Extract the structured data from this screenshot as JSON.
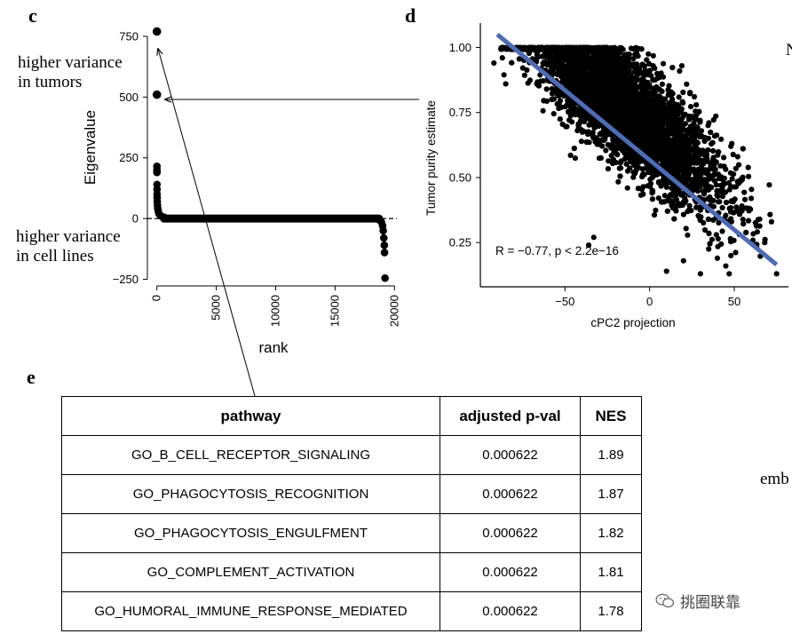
{
  "panels": {
    "c": "c",
    "d": "d",
    "e": "e"
  },
  "notes": {
    "tumors_line1": "higher variance",
    "tumors_line2": "in tumors",
    "lines_line1": "higher variance",
    "lines_line2": "in cell lines"
  },
  "edge_text": {
    "top": "N",
    "mid": "emb"
  },
  "watermark": "挑圈联靠",
  "chart_data": [
    {
      "type": "scatter",
      "panel": "c",
      "xlabel": "rank",
      "ylabel": "Eigenvalue",
      "xlim": [
        -800,
        20200
      ],
      "ylim": [
        -270,
        790
      ],
      "xticks": [
        0,
        5000,
        10000,
        15000,
        20000
      ],
      "xtick_labels": [
        "0",
        "5000",
        "10000",
        "15000",
        "20000"
      ],
      "yticks": [
        -250,
        0,
        250,
        500,
        750
      ],
      "ytick_labels": [
        "−250",
        "0",
        "250",
        "500",
        "750"
      ],
      "highlight_points": [
        {
          "x": 1,
          "y": 770
        },
        {
          "x": 2,
          "y": 510
        }
      ],
      "points": [
        {
          "x": 3,
          "y": 215
        },
        {
          "x": 4,
          "y": 200
        },
        {
          "x": 5,
          "y": 190
        },
        {
          "x": 8,
          "y": 140
        },
        {
          "x": 10,
          "y": 120
        },
        {
          "x": 14,
          "y": 100
        },
        {
          "x": 20,
          "y": 85
        },
        {
          "x": 30,
          "y": 70
        },
        {
          "x": 45,
          "y": 55
        },
        {
          "x": 70,
          "y": 42
        },
        {
          "x": 110,
          "y": 30
        },
        {
          "x": 180,
          "y": 20
        },
        {
          "x": 300,
          "y": 12
        },
        {
          "x": 600,
          "y": 6
        },
        {
          "x": 18700,
          "y": -5
        },
        {
          "x": 18900,
          "y": -15
        },
        {
          "x": 19000,
          "y": -30
        },
        {
          "x": 19050,
          "y": -50
        },
        {
          "x": 19100,
          "y": -80
        },
        {
          "x": 19140,
          "y": -110
        },
        {
          "x": 19160,
          "y": -140
        },
        {
          "x": 19200,
          "y": -245
        }
      ],
      "flat_segment": {
        "x_start": 600,
        "x_end": 18700,
        "y": 0
      }
    },
    {
      "type": "scatter",
      "panel": "d",
      "xlabel": "cPC2 projection",
      "ylabel": "Tumor purity estimate",
      "xlim": [
        -100,
        82
      ],
      "ylim": [
        0.08,
        1.08
      ],
      "xticks": [
        -50,
        0,
        50
      ],
      "xtick_labels": [
        "−50",
        "0",
        "50"
      ],
      "yticks": [
        0.25,
        0.5,
        0.75,
        1.0
      ],
      "ytick_labels": [
        "0.25",
        "0.50",
        "0.75",
        "1.00"
      ],
      "annotation": "R = −0.77, p < 2.2e−16",
      "regression": {
        "x1": -90,
        "y1": 1.05,
        "x2": 75,
        "y2": 0.165,
        "color": "#4e6bb5"
      },
      "cloud": {
        "n": 5000,
        "x_center": -15,
        "x_spread": 28,
        "y_intercept": 0.69,
        "slope": -0.00535,
        "noise": 0.105
      },
      "outliers": [
        {
          "x": -92,
          "y": 0.94
        },
        {
          "x": -85,
          "y": 0.86
        },
        {
          "x": -87,
          "y": 0.96
        },
        {
          "x": 33,
          "y": 0.45
        },
        {
          "x": 48,
          "y": 0.62
        },
        {
          "x": 35,
          "y": 0.71
        },
        {
          "x": 52,
          "y": 0.58
        },
        {
          "x": 65,
          "y": 0.34
        },
        {
          "x": 60,
          "y": 0.42
        },
        {
          "x": 72,
          "y": 0.33
        },
        {
          "x": 75,
          "y": 0.13
        },
        {
          "x": 45,
          "y": 0.16
        },
        {
          "x": 48,
          "y": 0.2
        },
        {
          "x": 30,
          "y": 0.13
        },
        {
          "x": 40,
          "y": 0.19
        },
        {
          "x": 47,
          "y": 0.13
        },
        {
          "x": 10,
          "y": 0.14
        },
        {
          "x": 20,
          "y": 0.18
        },
        {
          "x": -33,
          "y": 0.27
        },
        {
          "x": -36,
          "y": 0.24
        },
        {
          "x": 68,
          "y": 0.25
        }
      ]
    },
    {
      "type": "table",
      "panel": "e",
      "columns": [
        "pathway",
        "adjusted p-val",
        "NES"
      ],
      "rows": [
        [
          "GO_B_CELL_RECEPTOR_SIGNALING",
          "0.000622",
          "1.89"
        ],
        [
          "GO_PHAGOCYTOSIS_RECOGNITION",
          "0.000622",
          "1.87"
        ],
        [
          "GO_PHAGOCYTOSIS_ENGULFMENT",
          "0.000622",
          "1.82"
        ],
        [
          "GO_COMPLEMENT_ACTIVATION",
          "0.000622",
          "1.81"
        ],
        [
          "GO_HUMORAL_IMMUNE_RESPONSE_MEDIATED",
          "0.000622",
          "1.78"
        ]
      ]
    }
  ]
}
